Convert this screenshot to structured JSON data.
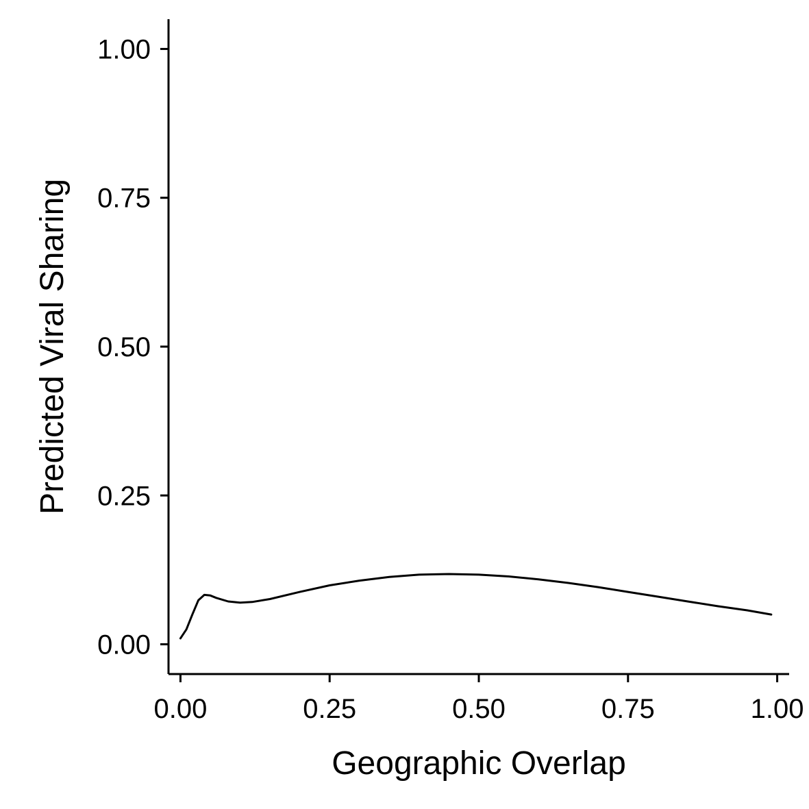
{
  "chart_data": {
    "type": "line",
    "title": "",
    "xlabel": "Geographic Overlap",
    "ylabel": "Predicted Viral Sharing",
    "xlim": [
      -0.02,
      1.02
    ],
    "ylim": [
      -0.05,
      1.05
    ],
    "x_ticks": [
      0.0,
      0.25,
      0.5,
      0.75,
      1.0
    ],
    "x_tick_labels": [
      "0.00",
      "0.25",
      "0.50",
      "0.75",
      "1.00"
    ],
    "y_ticks": [
      0.0,
      0.25,
      0.5,
      0.75,
      1.0
    ],
    "y_tick_labels": [
      "0.00",
      "0.25",
      "0.50",
      "0.75",
      "1.00"
    ],
    "grid": false,
    "line_color": "#000000",
    "series": [
      {
        "x": [
          0.0,
          0.01,
          0.02,
          0.03,
          0.04,
          0.05,
          0.06,
          0.08,
          0.1,
          0.12,
          0.15,
          0.2,
          0.25,
          0.3,
          0.35,
          0.4,
          0.45,
          0.5,
          0.55,
          0.6,
          0.65,
          0.7,
          0.75,
          0.8,
          0.85,
          0.9,
          0.95,
          0.99
        ],
        "y": [
          0.01,
          0.025,
          0.05,
          0.074,
          0.083,
          0.082,
          0.078,
          0.072,
          0.07,
          0.071,
          0.076,
          0.088,
          0.099,
          0.107,
          0.113,
          0.117,
          0.118,
          0.117,
          0.114,
          0.109,
          0.103,
          0.096,
          0.088,
          0.08,
          0.072,
          0.064,
          0.057,
          0.05
        ]
      }
    ]
  }
}
